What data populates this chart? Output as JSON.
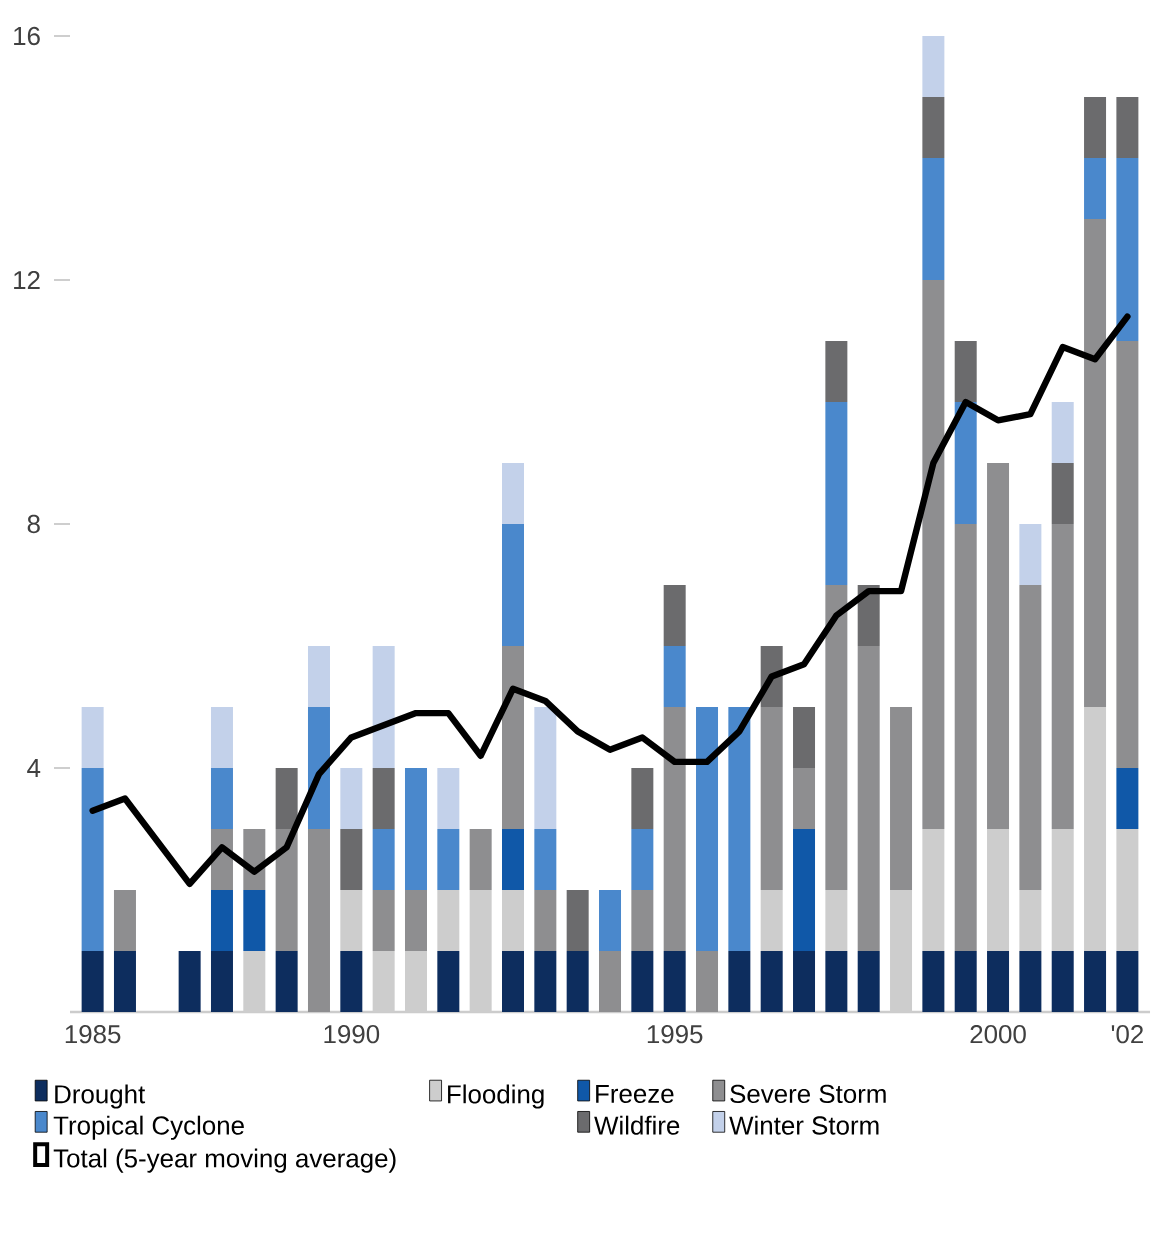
{
  "chart_data": {
    "type": "bar",
    "stacked": true,
    "legend": "bottom",
    "categories": [
      "1985",
      null,
      null,
      null,
      null,
      null,
      null,
      null,
      "1990",
      null,
      null,
      null,
      null,
      null,
      null,
      null,
      null,
      null,
      "1995",
      null,
      null,
      null,
      null,
      null,
      null,
      null,
      null,
      null,
      "2000",
      null,
      null,
      null,
      "'02"
    ],
    "ylim": [
      0,
      16
    ],
    "yticks": [
      4,
      8,
      12,
      16
    ],
    "series": [
      {
        "name": "Drought",
        "color": "#0d2d5e",
        "values": [
          1,
          1,
          0,
          1,
          1,
          0,
          1,
          0,
          1,
          0,
          0,
          1,
          0,
          1,
          1,
          1,
          0,
          1,
          1,
          0,
          1,
          1,
          1,
          1,
          1,
          0,
          1,
          1,
          1,
          1,
          1,
          1,
          1
        ]
      },
      {
        "name": "Flooding",
        "color": "#cdcdcd",
        "values": [
          0,
          0,
          0,
          0,
          0,
          1,
          0,
          0,
          1,
          1,
          1,
          1,
          2,
          1,
          0,
          0,
          0,
          0,
          0,
          0,
          0,
          1,
          0,
          1,
          0,
          2,
          2,
          0,
          2,
          1,
          2,
          4,
          2
        ]
      },
      {
        "name": "Freeze",
        "color": "#1058a8",
        "values": [
          0,
          0,
          0,
          0,
          1,
          1,
          0,
          0,
          0,
          0,
          0,
          0,
          0,
          1,
          0,
          0,
          0,
          0,
          0,
          0,
          0,
          0,
          2,
          0,
          0,
          0,
          0,
          0,
          0,
          0,
          0,
          0,
          1
        ]
      },
      {
        "name": "Severe Storm",
        "color": "#8e8e90",
        "values": [
          0,
          1,
          0,
          0,
          1,
          1,
          2,
          3,
          0,
          1,
          1,
          0,
          1,
          3,
          1,
          0,
          1,
          1,
          4,
          1,
          0,
          3,
          1,
          5,
          5,
          3,
          9,
          7,
          6,
          5,
          5,
          8,
          7
        ]
      },
      {
        "name": "Tropical Cyclone",
        "color": "#4a88cc",
        "values": [
          3,
          0,
          0,
          0,
          1,
          0,
          0,
          2,
          0,
          1,
          2,
          1,
          0,
          2,
          1,
          0,
          1,
          1,
          1,
          4,
          4,
          0,
          0,
          3,
          0,
          0,
          2,
          2,
          0,
          0,
          0,
          1,
          3
        ]
      },
      {
        "name": "Wildfire",
        "color": "#6b6b6d",
        "values": [
          0,
          0,
          0,
          0,
          0,
          0,
          1,
          0,
          1,
          1,
          0,
          0,
          0,
          0,
          0,
          1,
          0,
          1,
          1,
          0,
          0,
          1,
          1,
          1,
          1,
          0,
          1,
          1,
          0,
          0,
          1,
          1,
          1
        ]
      },
      {
        "name": "Winter Storm",
        "color": "#c3d1ea",
        "values": [
          1,
          0,
          0,
          0,
          1,
          0,
          0,
          1,
          1,
          2,
          0,
          1,
          0,
          1,
          2,
          0,
          0,
          0,
          0,
          0,
          0,
          0,
          0,
          0,
          0,
          0,
          1,
          0,
          0,
          1,
          1,
          0,
          0
        ]
      },
      {
        "name": "Total (5-year moving average)",
        "type": "line",
        "color": "#000000",
        "values": [
          3.3,
          3.5,
          2.8,
          2.1,
          2.7,
          2.3,
          2.7,
          3.9,
          4.5,
          4.7,
          4.9,
          4.9,
          4.2,
          5.3,
          5.1,
          4.6,
          4.3,
          4.5,
          4.1,
          4.1,
          4.6,
          5.5,
          5.7,
          6.5,
          6.9,
          6.9,
          9.0,
          10.0,
          9.7,
          9.8,
          10.9,
          10.7,
          11.4
        ]
      }
    ]
  }
}
